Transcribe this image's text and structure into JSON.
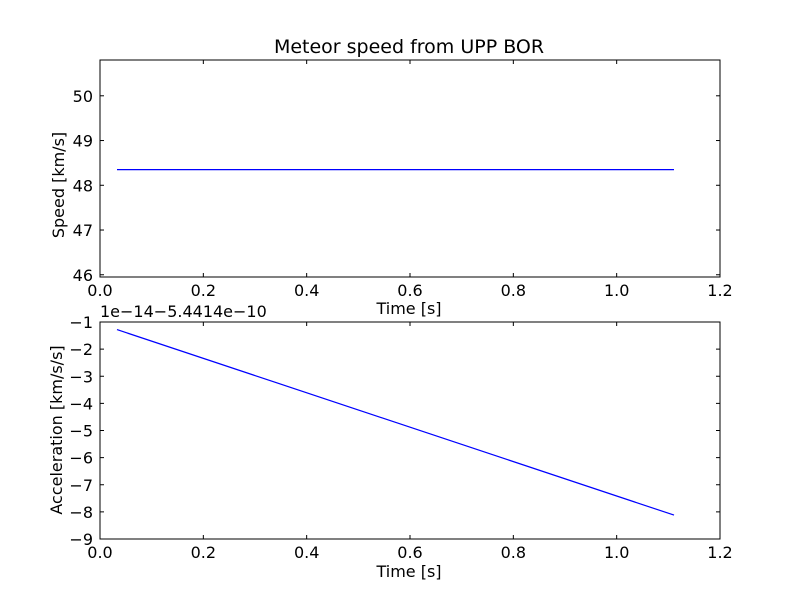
{
  "figure": {
    "title": "Meteor speed from  UPP BOR",
    "line_color": "#0000ff"
  },
  "chart_data": [
    {
      "type": "line",
      "title": "Meteor speed from  UPP BOR",
      "xlabel": "Time [s]",
      "ylabel": "Speed [km/s]",
      "xlim": [
        0.0,
        1.2
      ],
      "ylim": [
        45.95,
        50.8
      ],
      "x_ticks": [
        "0.0",
        "0.2",
        "0.4",
        "0.6",
        "0.8",
        "1.0",
        "1.2"
      ],
      "y_ticks": [
        "46",
        "47",
        "48",
        "49",
        "50"
      ],
      "grid": false,
      "series": [
        {
          "x": [
            0.033,
            1.111
          ],
          "y": [
            48.35,
            48.35
          ]
        }
      ]
    },
    {
      "type": "line",
      "title": "",
      "xlabel": "Time [s]",
      "ylabel": "Acceleration [km/s/s]",
      "offset_text": "1e−14−5.4414e−10",
      "xlim": [
        0.0,
        1.2
      ],
      "ylim": [
        -9,
        -1
      ],
      "x_ticks": [
        "0.0",
        "0.2",
        "0.4",
        "0.6",
        "0.8",
        "1.0",
        "1.2"
      ],
      "y_ticks": [
        "−1",
        "−2",
        "−3",
        "−4",
        "−5",
        "−6",
        "−7",
        "−8",
        "−9"
      ],
      "grid": false,
      "series": [
        {
          "x": [
            0.033,
            1.111
          ],
          "y": [
            -1.28,
            -8.12
          ]
        }
      ]
    }
  ]
}
